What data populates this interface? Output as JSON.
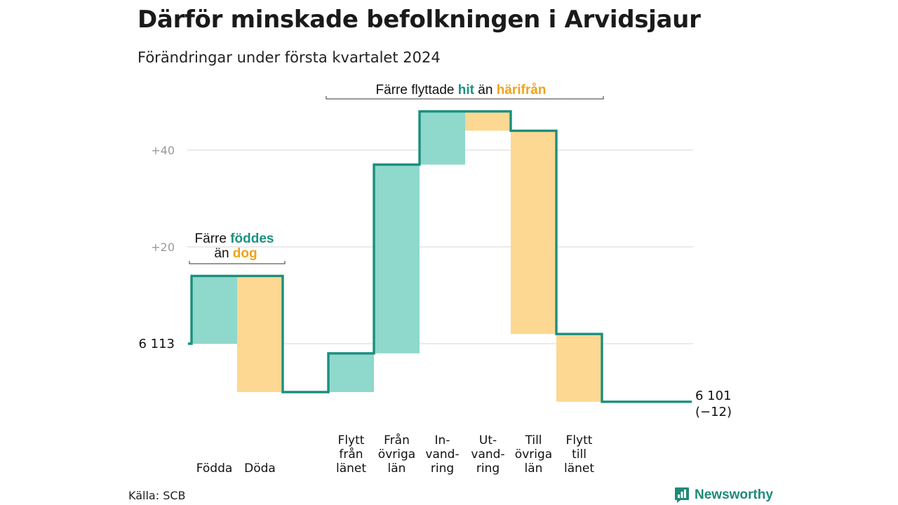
{
  "title": "Därför minskade befolkningen i Arvidsjaur",
  "subtitle": "Förändringar under första kvartalet 2024",
  "source": "Källa: SCB",
  "brand": {
    "name": "Newsworthy",
    "color": "#1f8a78",
    "icon": "bar-chart-speech-icon"
  },
  "colors": {
    "increase_fill": "#8fd8cc",
    "decrease_fill": "#fcd892",
    "line": "#1a8f7e",
    "hit_text": "#1a9280",
    "harifran_text": "#f0a21c",
    "grid": "#dddddd",
    "tick_text": "#999999"
  },
  "chart_data": {
    "type": "waterfall",
    "title": "Därför minskade befolkningen i Arvidsjaur",
    "subtitle": "Förändringar under första kvartalet 2024",
    "start_label": "6  113",
    "end_label": "6 101",
    "end_change_label": "(−12)",
    "start_value": 0,
    "end_value": -12,
    "ylim": [
      -15,
      48
    ],
    "yticks": [
      {
        "value": 20,
        "label": "+20"
      },
      {
        "value": 40,
        "label": "+40"
      }
    ],
    "grid": true,
    "steps": [
      {
        "label": [
          "Födda"
        ],
        "value": 14,
        "kind": "increase"
      },
      {
        "label": [
          "Döda"
        ],
        "value": -24,
        "kind": "decrease"
      },
      {
        "label": [
          "Flytt",
          "från",
          "länet"
        ],
        "value": 8,
        "kind": "increase"
      },
      {
        "label": [
          "Från",
          "övriga",
          "län"
        ],
        "value": 39,
        "kind": "increase"
      },
      {
        "label": [
          "In-",
          "vand-",
          "ring"
        ],
        "value": 11,
        "kind": "increase"
      },
      {
        "label": [
          "Ut-",
          "vand-",
          "ring"
        ],
        "value": -4,
        "kind": "decrease"
      },
      {
        "label": [
          "Till",
          "övriga",
          "län"
        ],
        "value": -42,
        "kind": "decrease"
      },
      {
        "label": [
          "Flytt",
          "till",
          "länet"
        ],
        "value": -14,
        "kind": "decrease"
      }
    ],
    "annotations": [
      {
        "id": "natural",
        "lines": [
          [
            {
              "text": "Färre ",
              "style": "plain"
            },
            {
              "text": "föddes",
              "style": "hit"
            }
          ],
          [
            {
              "text": "än ",
              "style": "plain"
            },
            {
              "text": "dog",
              "style": "harifran"
            }
          ]
        ]
      },
      {
        "id": "migration",
        "lines": [
          [
            {
              "text": "Färre flyttade ",
              "style": "plain"
            },
            {
              "text": "hit",
              "style": "hit"
            },
            {
              "text": " än ",
              "style": "plain"
            },
            {
              "text": "härifrån",
              "style": "harifran"
            }
          ]
        ]
      }
    ]
  }
}
